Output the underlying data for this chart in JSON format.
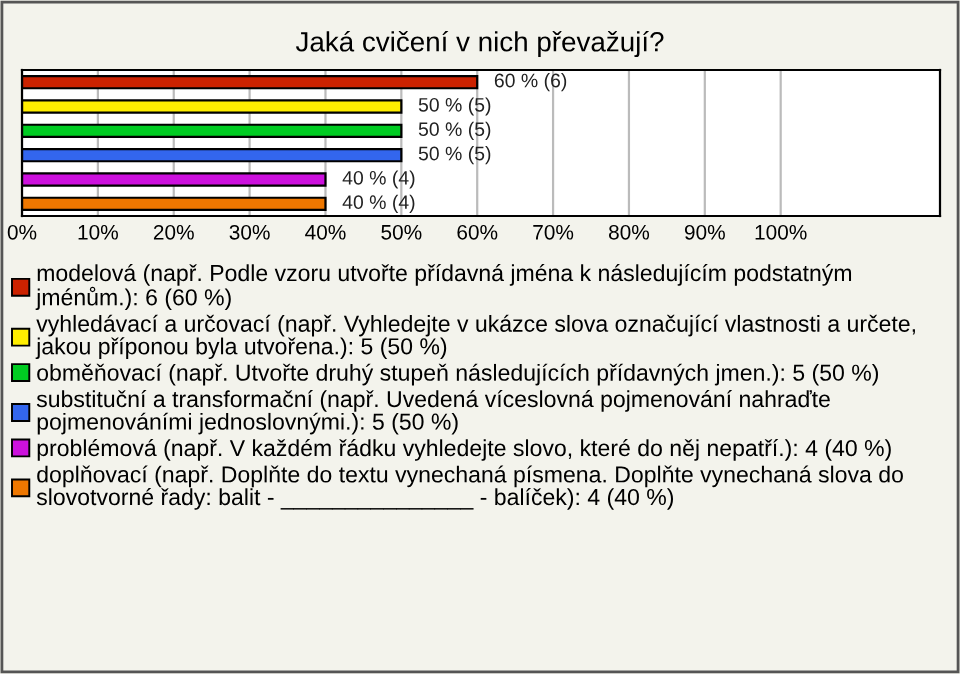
{
  "chart_data": {
    "type": "bar",
    "orientation": "horizontal",
    "stacked": true,
    "title": "Jaká cvičení v nich převažují?",
    "categories": [
      null,
      null,
      null,
      null,
      null,
      null
    ],
    "series": [
      {
        "name": "modelová (např. Podle vzoru utvořte přídavná jména k následujícím podstatným jménům.): 6 (60 %)",
        "color": "#cc2200",
        "values": [
          60,
          null,
          null,
          null,
          null,
          null
        ],
        "value_labels": [
          "60 % (6)",
          null,
          null,
          null,
          null,
          null
        ]
      },
      {
        "name": "vyhledávací a určovací (např. Vyhledejte v ukázce slova označující vlastnosti a určete, jakou příponou byla utvořena.): 5 (50 %)",
        "color": "#ffee00",
        "values": [
          null,
          50,
          null,
          null,
          null,
          null
        ],
        "value_labels": [
          null,
          "50 % (5)",
          null,
          null,
          null,
          null
        ]
      },
      {
        "name": "obměňovací (např. Utvořte druhý stupeň následujících přídavných jmen.): 5 (50 %)",
        "color": "#00cc22",
        "values": [
          null,
          null,
          50,
          null,
          null,
          null
        ],
        "value_labels": [
          null,
          null,
          "50 % (5)",
          null,
          null,
          null
        ]
      },
      {
        "name": "substituční a transformační (např. Uvedená víceslovná pojmenování nahraďte pojmenováními jednoslovnými.): 5 (50 %)",
        "color": "#3366ee",
        "values": [
          null,
          null,
          null,
          50,
          null,
          null
        ],
        "value_labels": [
          null,
          null,
          null,
          "50 % (5)",
          null,
          null
        ]
      },
      {
        "name": "problémová (např. V každém řádku vyhledejte slovo, které do něj nepatří.): 4 (40 %)",
        "color": "#cc11dd",
        "values": [
          null,
          null,
          null,
          null,
          40,
          null
        ],
        "value_labels": [
          null,
          null,
          null,
          null,
          "40 % (4)",
          null
        ]
      },
      {
        "name": "doplňovací (např. Doplňte do textu vynechaná písmena. Doplňte vynechaná slova do slovotvorné řady: balit - _______________ - balíček): 4 (40 %)",
        "color": "#ee7700",
        "values": [
          null,
          null,
          null,
          null,
          null,
          40
        ],
        "value_labels": [
          null,
          null,
          null,
          null,
          null,
          "40 % (4)"
        ]
      }
    ],
    "xlim": [
      0,
      121
    ],
    "xticks": [
      {
        "value": 0,
        "label": "0%"
      },
      {
        "value": 10,
        "label": "10%"
      },
      {
        "value": 20,
        "label": "20%"
      },
      {
        "value": 30,
        "label": "30%"
      },
      {
        "value": 40,
        "label": "40%"
      },
      {
        "value": 50,
        "label": "50%"
      },
      {
        "value": 60,
        "label": "60%"
      },
      {
        "value": 70,
        "label": "70%"
      },
      {
        "value": 80,
        "label": "80%"
      },
      {
        "value": 90,
        "label": "90%"
      },
      {
        "value": 100,
        "label": "100%"
      }
    ],
    "grid": "x",
    "legend": "bottom"
  }
}
